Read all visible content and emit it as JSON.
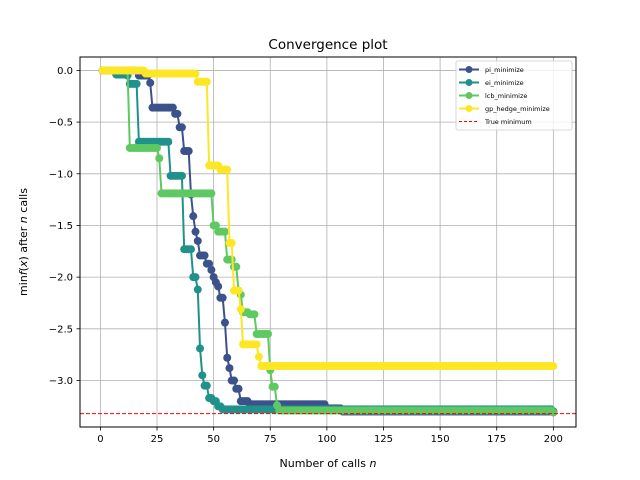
{
  "chart_data": {
    "type": "line",
    "title": "Convergence plot",
    "xlabel": "Number of calls n",
    "xlabel_main": "Number of calls ",
    "xlabel_var": "n",
    "ylabel": "min f(x) after n calls",
    "xlim": [
      -9,
      210
    ],
    "ylim": [
      -3.45,
      0.13
    ],
    "xticks": [
      0,
      25,
      50,
      75,
      100,
      125,
      150,
      175,
      200
    ],
    "yticks": [
      0.0,
      -0.5,
      -1.0,
      -1.5,
      -2.0,
      -2.5,
      -3.0
    ],
    "ytick_labels": [
      "0.0",
      "−0.5",
      "−1.0",
      "−1.5",
      "−2.0",
      "−2.5",
      "−3.0"
    ],
    "grid": true,
    "legend_position": "top-right",
    "true_minimum": -3.32,
    "series": [
      {
        "name": "pi_minimize",
        "color": "#3b528b",
        "steps": [
          [
            1,
            0.0
          ],
          [
            17,
            -0.05
          ],
          [
            22,
            -0.12
          ],
          [
            23,
            -0.36
          ],
          [
            33,
            -0.42
          ],
          [
            35,
            -0.55
          ],
          [
            37,
            -0.78
          ],
          [
            40,
            -1.2
          ],
          [
            41,
            -1.41
          ],
          [
            42,
            -1.56
          ],
          [
            43,
            -1.65
          ],
          [
            44,
            -1.79
          ],
          [
            47,
            -1.87
          ],
          [
            49,
            -1.93
          ],
          [
            50,
            -2.0
          ],
          [
            51,
            -2.05
          ],
          [
            52,
            -2.09
          ],
          [
            53,
            -2.2
          ],
          [
            55,
            -2.44
          ],
          [
            56,
            -2.78
          ],
          [
            57,
            -2.88
          ],
          [
            58,
            -3.0
          ],
          [
            60,
            -3.08
          ],
          [
            62,
            -3.2
          ],
          [
            66,
            -3.23
          ],
          [
            100,
            -3.27
          ],
          [
            107,
            -3.3
          ],
          [
            200,
            -3.3
          ]
        ]
      },
      {
        "name": "ei_minimize",
        "color": "#21918c",
        "steps": [
          [
            1,
            0.0
          ],
          [
            7,
            -0.04
          ],
          [
            12,
            -0.05
          ],
          [
            13,
            -0.13
          ],
          [
            17,
            -0.69
          ],
          [
            31,
            -1.02
          ],
          [
            37,
            -1.73
          ],
          [
            41,
            -2.0
          ],
          [
            43,
            -2.12
          ],
          [
            44,
            -2.69
          ],
          [
            45,
            -2.95
          ],
          [
            46,
            -3.05
          ],
          [
            48,
            -3.17
          ],
          [
            50,
            -3.2
          ],
          [
            52,
            -3.25
          ],
          [
            54,
            -3.28
          ],
          [
            200,
            -3.3
          ]
        ]
      },
      {
        "name": "lcb_minimize",
        "color": "#5ec962",
        "steps": [
          [
            1,
            0.0
          ],
          [
            13,
            -0.75
          ],
          [
            26,
            -0.85
          ],
          [
            27,
            -1.19
          ],
          [
            50,
            -1.5
          ],
          [
            52,
            -1.56
          ],
          [
            56,
            -1.83
          ],
          [
            59,
            -1.9
          ],
          [
            61,
            -2.13
          ],
          [
            62,
            -2.17
          ],
          [
            63,
            -2.34
          ],
          [
            66,
            -2.36
          ],
          [
            69,
            -2.55
          ],
          [
            75,
            -2.9
          ],
          [
            76,
            -3.06
          ],
          [
            78,
            -3.24
          ],
          [
            79,
            -3.29
          ],
          [
            200,
            -3.31
          ]
        ]
      },
      {
        "name": "gp_hedge_minimize",
        "color": "#fde725",
        "steps": [
          [
            1,
            0.0
          ],
          [
            20,
            -0.03
          ],
          [
            43,
            -0.11
          ],
          [
            48,
            -0.92
          ],
          [
            53,
            -0.96
          ],
          [
            57,
            -1.67
          ],
          [
            59,
            -2.13
          ],
          [
            62,
            -2.31
          ],
          [
            63,
            -2.65
          ],
          [
            70,
            -2.77
          ],
          [
            71,
            -2.86
          ],
          [
            200,
            -2.86
          ]
        ]
      }
    ],
    "reference_line": {
      "name": "True minimum",
      "color": "#ff0000",
      "style": "dashed",
      "y": -3.32
    }
  }
}
